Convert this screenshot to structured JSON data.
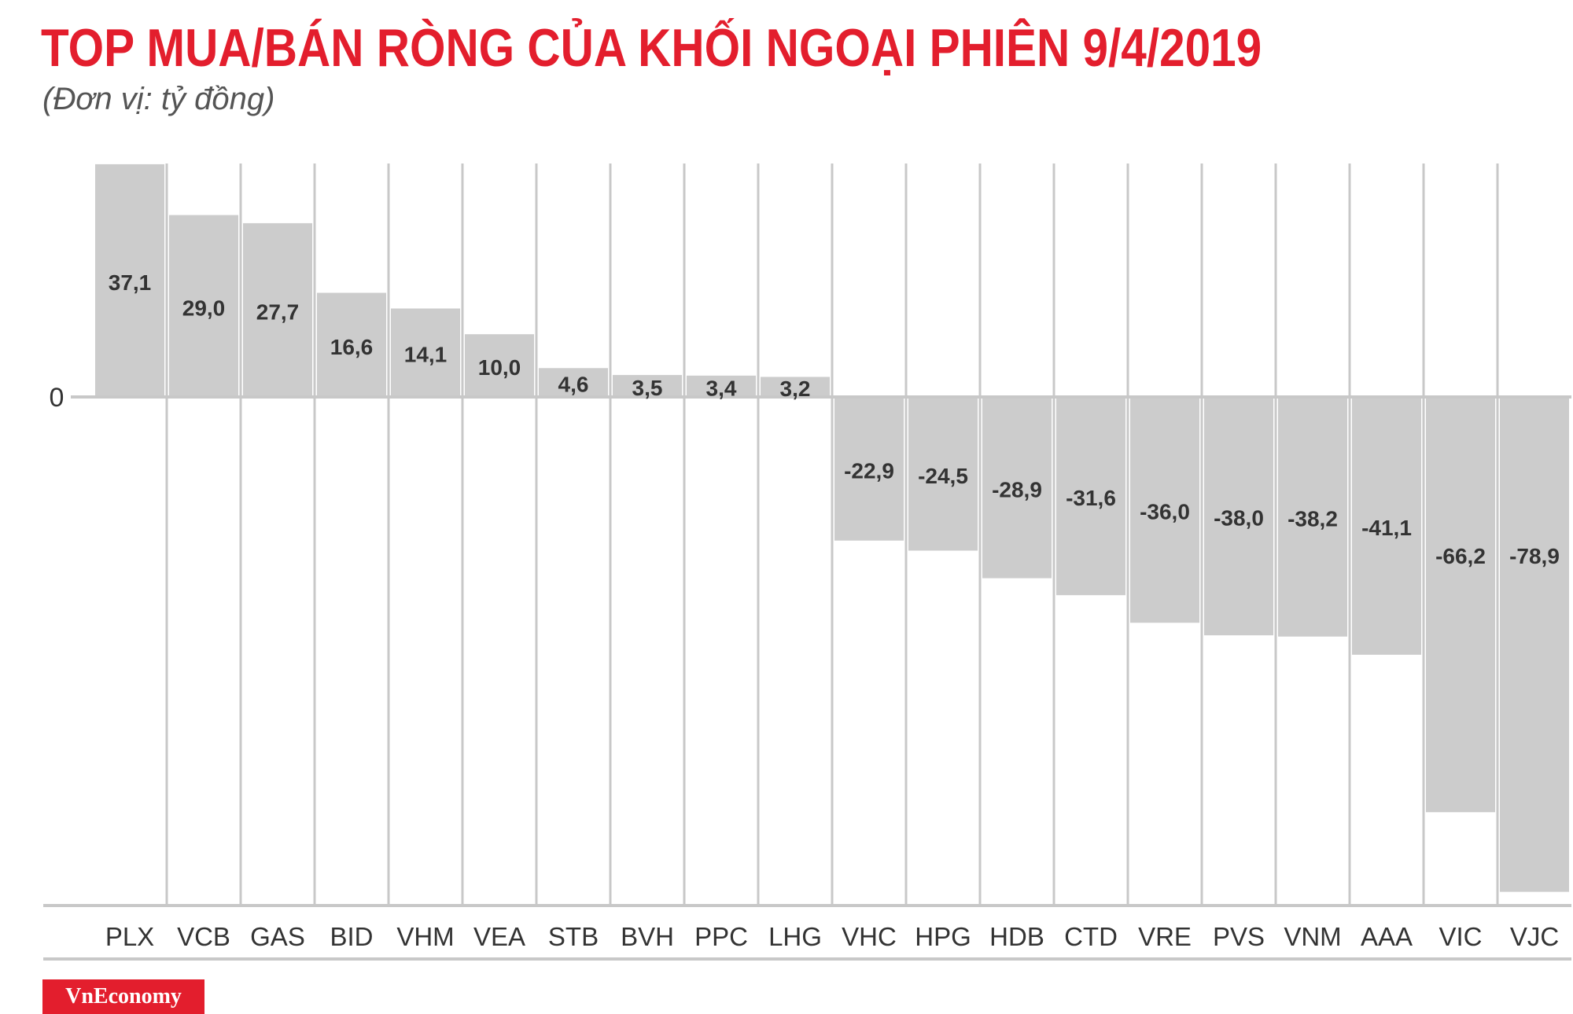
{
  "title": "TOP MUA/BÁN RÒNG CỦA KHỐI NGOẠI PHIÊN 9/4/2019",
  "subtitle": "(Đơn vị: tỷ đồng)",
  "logo_text": "VnEconomy",
  "colors": {
    "title": "#e31e2d",
    "bar": "#cccccc",
    "gridline": "#c8c8c8",
    "baseline": "#c8c8c8",
    "text": "#333333",
    "logo_bg": "#e31e2d"
  },
  "chart_data": {
    "type": "bar",
    "title": "TOP MUA/BÁN RÒNG CỦA KHỐI NGOẠI PHIÊN 9/4/2019",
    "subtitle": "(Đơn vị: tỷ đồng)",
    "categories": [
      "PLX",
      "VCB",
      "GAS",
      "BID",
      "VHM",
      "VEA",
      "STB",
      "BVH",
      "PPC",
      "LHG",
      "VHC",
      "HPG",
      "HDB",
      "CTD",
      "VRE",
      "PVS",
      "VNM",
      "AAA",
      "VIC",
      "VJC"
    ],
    "values": [
      37.1,
      29.0,
      27.7,
      16.6,
      14.1,
      10.0,
      4.6,
      3.5,
      3.4,
      3.2,
      -22.9,
      -24.5,
      -28.9,
      -31.6,
      -36.0,
      -38.0,
      -38.2,
      -41.1,
      -66.2,
      -78.9
    ],
    "value_labels": [
      "37,1",
      "29,0",
      "27,7",
      "16,6",
      "14,1",
      "10,0",
      "4,6",
      "3,5",
      "3,4",
      "3,2",
      "-22,9",
      "-24,5",
      "-28,9",
      "-31,6",
      "-36,0",
      "-38,0",
      "-38,2",
      "-41,1",
      "-66,2",
      "-78,9"
    ],
    "y_tick_labels": [
      "0"
    ],
    "ylim": [
      -82.5,
      37.1
    ],
    "grid": true,
    "xlabel": "",
    "ylabel": ""
  }
}
